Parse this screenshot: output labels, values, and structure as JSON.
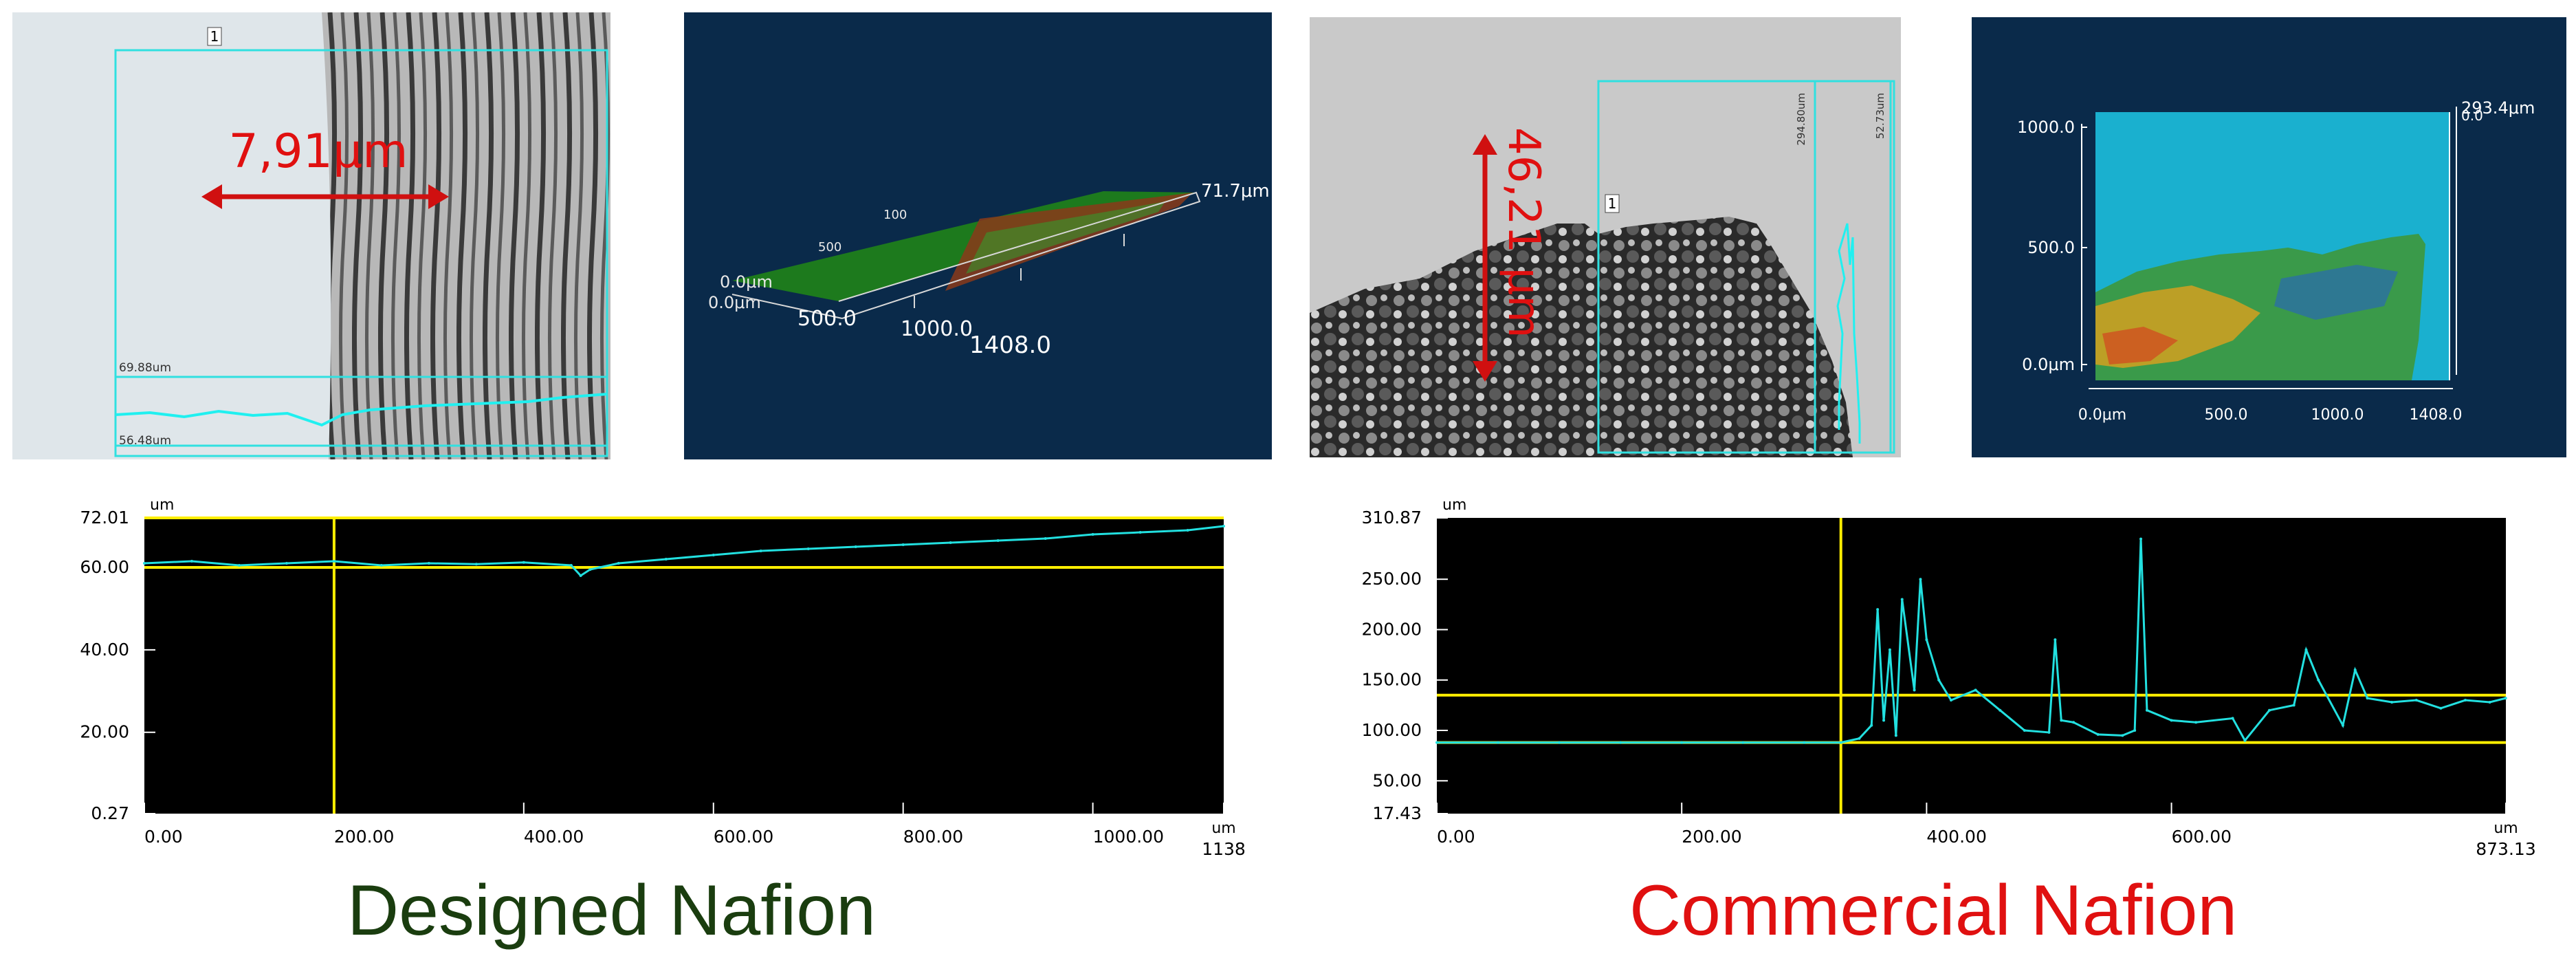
{
  "panels": {
    "designed_micro": {
      "marker": "1",
      "top_label": "69.88um",
      "bottom_label": "56.48um",
      "thickness": "7,91μm"
    },
    "designed_3d": {
      "z_origin": "0.0μm",
      "x_origin": "0.0μm",
      "y_tick": "100",
      "y_tick2": "500",
      "x_ticks": [
        "500.0",
        "1000.0",
        "1408.0"
      ],
      "z_max": "71.7μm"
    },
    "commercial_micro": {
      "marker": "1",
      "right_label_1": "294.80um",
      "right_label_2": "52.73um",
      "thickness": "46,21 μm"
    },
    "commercial_3d": {
      "y_ticks": [
        "1000.0",
        "500.0",
        "0.0μm"
      ],
      "x_ticks": [
        "0.0μm",
        "500.0",
        "1000.0",
        "1408.0"
      ],
      "z_max": "293.4μm",
      "z_min": "0.0"
    }
  },
  "colors": {
    "designed_caption": "#1a3d0f",
    "commercial_caption": "#e01010",
    "profile_line": "#22e0e0",
    "cursor": "#ffee00",
    "panel_bg": "#0a2a4a"
  },
  "captions": {
    "designed": "Designed Nafion",
    "commercial": "Commercial Nafion"
  },
  "chart_data": [
    {
      "type": "line",
      "title": "",
      "ylabel": "um",
      "xlabel": "um",
      "ylim": [
        0.27,
        72.01
      ],
      "xlim": [
        0,
        1138
      ],
      "y_ticks": [
        "72.01",
        "60.00",
        "40.00",
        "20.00",
        "0.27"
      ],
      "x_ticks": [
        "0.00",
        "200.00",
        "400.00",
        "600.00",
        "800.00",
        "1000.00",
        "1138"
      ],
      "cursors": {
        "x": [
          200
        ],
        "y": [
          72.01,
          60
        ]
      },
      "x": [
        0,
        50,
        100,
        150,
        200,
        250,
        300,
        350,
        400,
        450,
        460,
        470,
        480,
        500,
        550,
        600,
        650,
        700,
        750,
        800,
        850,
        900,
        950,
        1000,
        1050,
        1100,
        1138
      ],
      "values": [
        61,
        61.5,
        60.5,
        61,
        61.5,
        60.5,
        61,
        60.8,
        61.2,
        60.5,
        58,
        59.5,
        60,
        61,
        62,
        63,
        64,
        64.5,
        65,
        65.5,
        66,
        66.5,
        67,
        68,
        68.5,
        69,
        70
      ]
    },
    {
      "type": "line",
      "title": "",
      "ylabel": "um",
      "xlabel": "um",
      "ylim": [
        17.43,
        310.87
      ],
      "xlim": [
        0,
        873.13
      ],
      "y_ticks": [
        "310.87",
        "250.00",
        "200.00",
        "150.00",
        "100.00",
        "50.00",
        "17.43"
      ],
      "x_ticks": [
        "0.00",
        "200.00",
        "400.00",
        "600.00",
        "873.13"
      ],
      "cursors": {
        "x": [
          330
        ],
        "y": [
          135,
          88
        ]
      },
      "x": [
        0,
        50,
        100,
        150,
        200,
        250,
        300,
        330,
        345,
        355,
        360,
        365,
        370,
        375,
        380,
        390,
        395,
        400,
        410,
        420,
        440,
        460,
        480,
        500,
        505,
        510,
        520,
        540,
        560,
        570,
        575,
        580,
        600,
        620,
        650,
        660,
        680,
        700,
        710,
        720,
        740,
        750,
        760,
        780,
        800,
        820,
        840,
        860,
        873
      ],
      "values": [
        88,
        88,
        88,
        88,
        88,
        88,
        88,
        88,
        92,
        105,
        220,
        110,
        180,
        95,
        230,
        140,
        250,
        190,
        150,
        130,
        140,
        120,
        100,
        98,
        190,
        110,
        108,
        96,
        95,
        100,
        290,
        120,
        110,
        108,
        112,
        90,
        120,
        125,
        180,
        150,
        105,
        160,
        132,
        128,
        130,
        122,
        130,
        128,
        132
      ]
    }
  ]
}
